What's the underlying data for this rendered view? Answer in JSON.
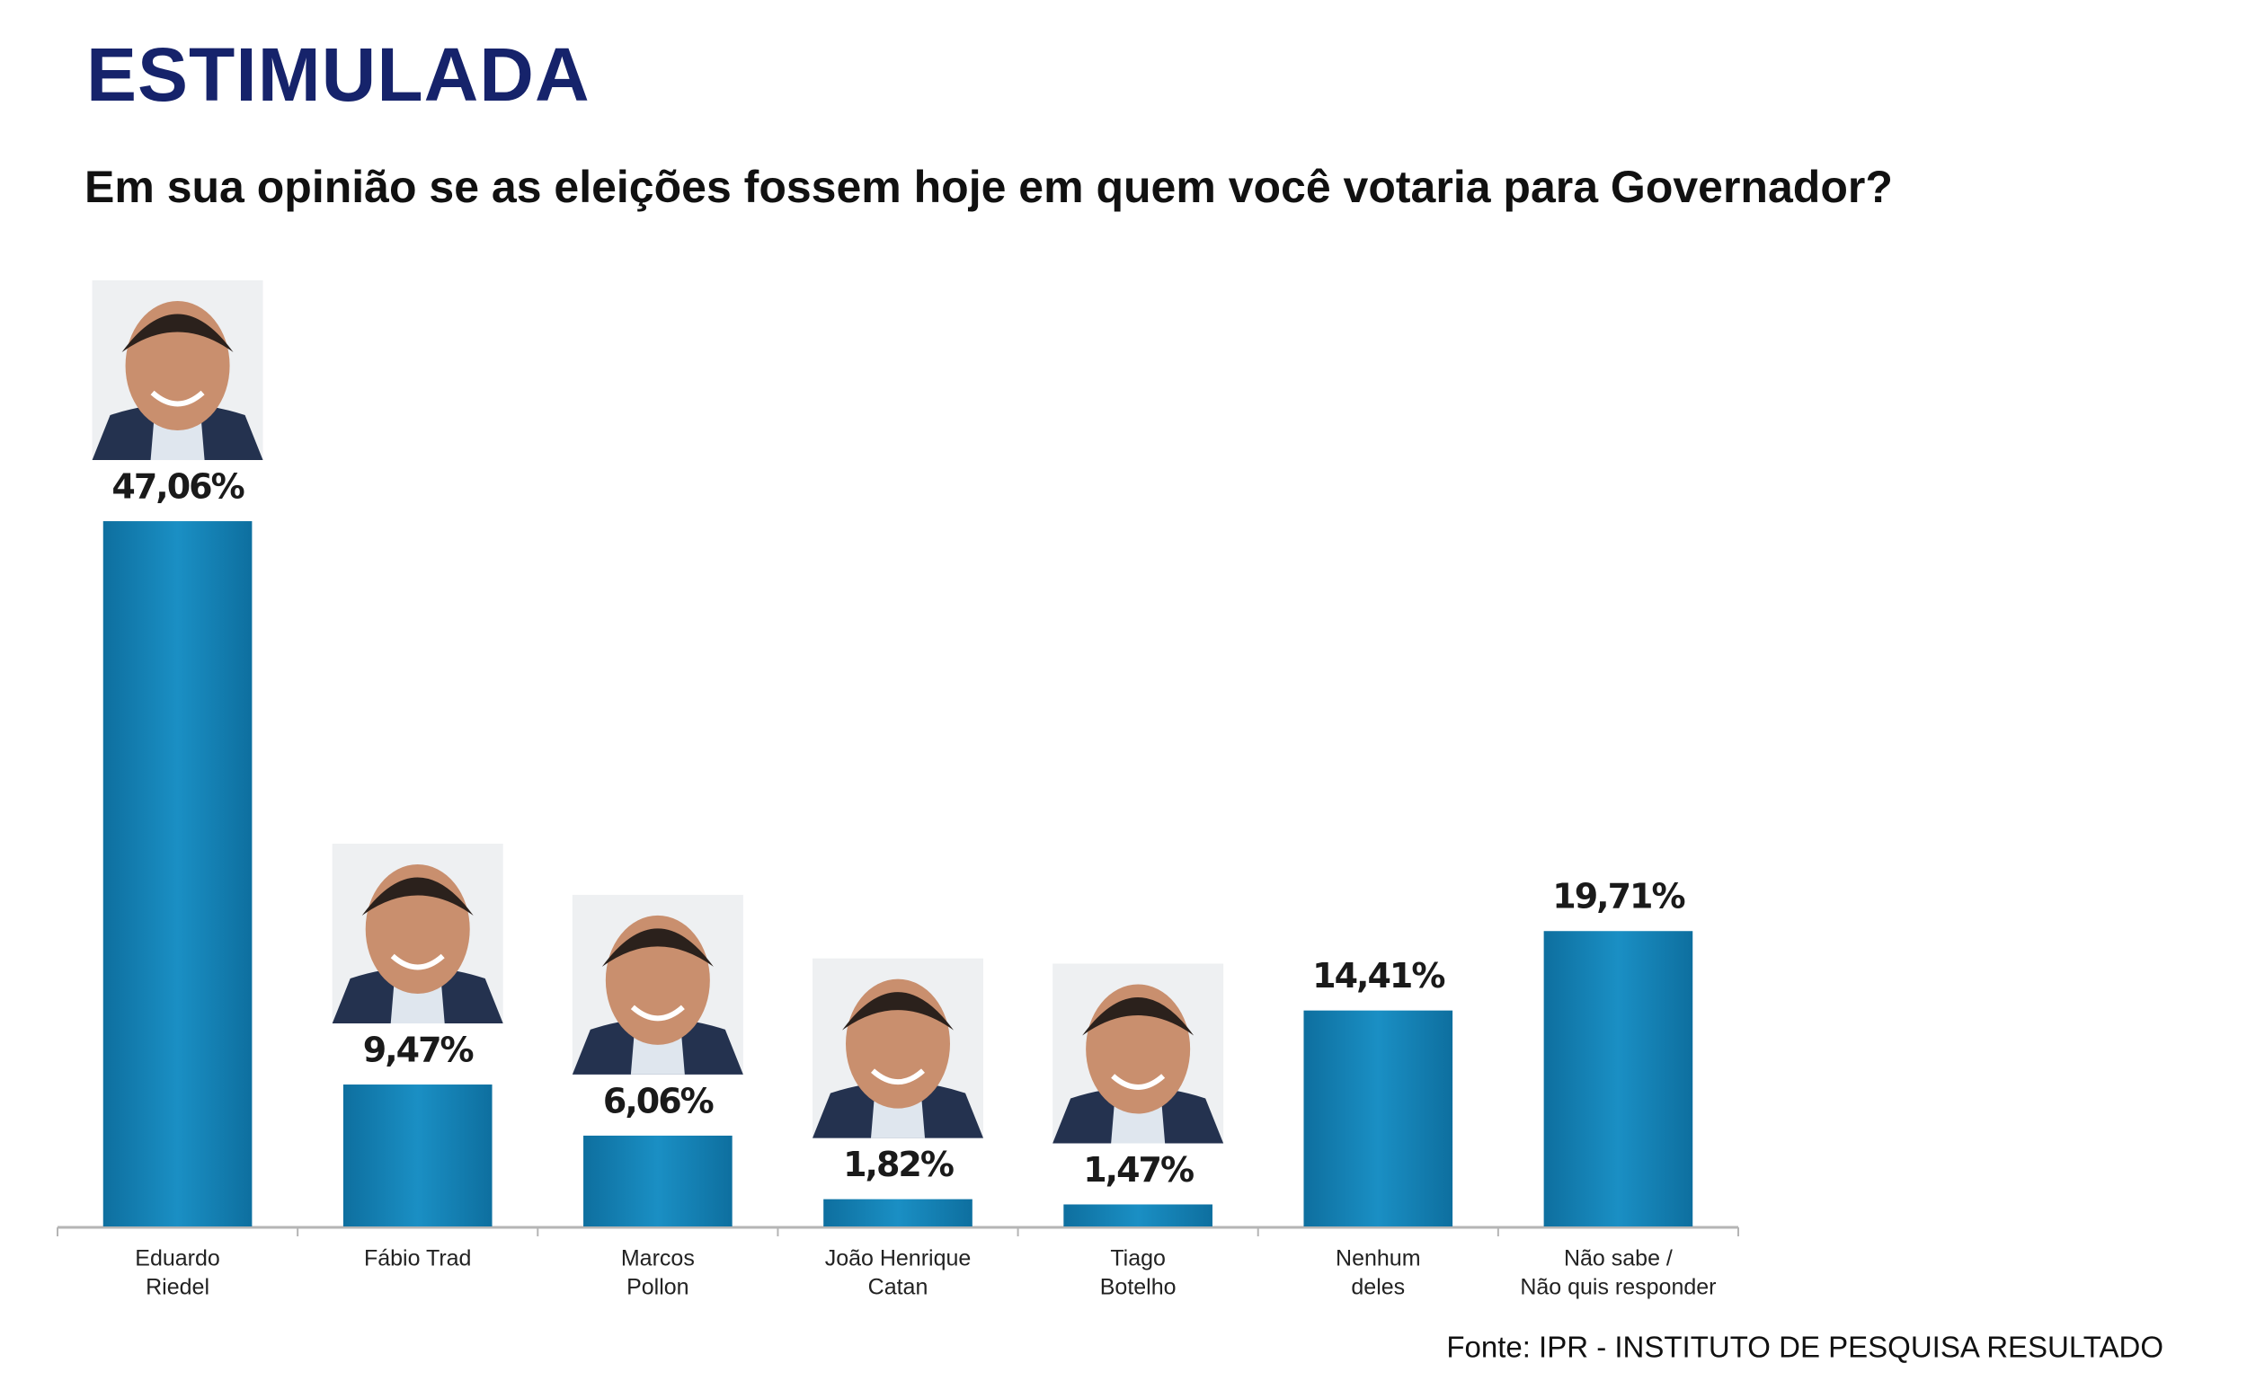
{
  "chart_data": {
    "type": "bar",
    "title": "ESTIMULADA",
    "subtitle": "Em sua opinião se as eleições fossem hoje em quem você votaria para Governador?",
    "categories": [
      [
        "Eduardo",
        "Riedel"
      ],
      [
        "Fábio Trad"
      ],
      [
        "Marcos",
        "Pollon"
      ],
      [
        "João Henrique",
        "Catan"
      ],
      [
        "Tiago",
        "Botelho"
      ],
      [
        "Nenhum",
        "deles"
      ],
      [
        "Não sabe /",
        "Não quis responder"
      ]
    ],
    "values": [
      47.06,
      9.47,
      6.06,
      1.82,
      1.47,
      14.41,
      19.71
    ],
    "value_labels": [
      "47,06%",
      "9,47%",
      "6,06%",
      "1,82%",
      "1,47%",
      "14,41%",
      "19,71%"
    ],
    "color": "#1583b8",
    "ylim": [
      0,
      50
    ],
    "source": "Fonte: IPR - INSTITUTO DE PESQUISA RESULTADO"
  }
}
